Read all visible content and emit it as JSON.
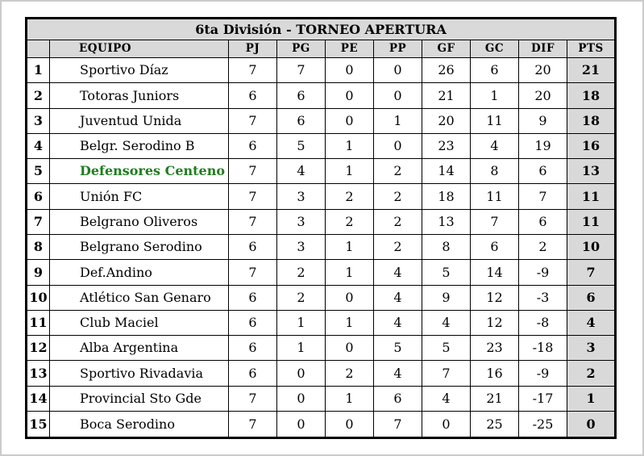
{
  "title": "6ta División - TORNEO APERTURA",
  "table": {
    "headers": {
      "rank": "",
      "equipo": "EQUIPO",
      "pj": "PJ",
      "pg": "PG",
      "pe": "PE",
      "pp": "PP",
      "gf": "GF",
      "gc": "GC",
      "dif": "DIF",
      "pts": "PTS"
    }
  },
  "rows": [
    {
      "rank": 1,
      "team": "Sportivo Díaz",
      "pj": 7,
      "pg": 7,
      "pe": 0,
      "pp": 0,
      "gf": 26,
      "gc": 6,
      "dif": 20,
      "pts": 21,
      "highlighted": false
    },
    {
      "rank": 2,
      "team": "Totoras Juniors",
      "pj": 6,
      "pg": 6,
      "pe": 0,
      "pp": 0,
      "gf": 21,
      "gc": 1,
      "dif": 20,
      "pts": 18,
      "highlighted": false
    },
    {
      "rank": 3,
      "team": "Juventud Unida",
      "pj": 7,
      "pg": 6,
      "pe": 0,
      "pp": 1,
      "gf": 20,
      "gc": 11,
      "dif": 9,
      "pts": 18,
      "highlighted": false
    },
    {
      "rank": 4,
      "team": "Belgr. Serodino B",
      "pj": 6,
      "pg": 5,
      "pe": 1,
      "pp": 0,
      "gf": 23,
      "gc": 4,
      "dif": 19,
      "pts": 16,
      "highlighted": false
    },
    {
      "rank": 5,
      "team": "Defensores Centeno",
      "pj": 7,
      "pg": 4,
      "pe": 1,
      "pp": 2,
      "gf": 14,
      "gc": 8,
      "dif": 6,
      "pts": 13,
      "highlighted": true
    },
    {
      "rank": 6,
      "team": "Unión FC",
      "pj": 7,
      "pg": 3,
      "pe": 2,
      "pp": 2,
      "gf": 18,
      "gc": 11,
      "dif": 7,
      "pts": 11,
      "highlighted": false
    },
    {
      "rank": 7,
      "team": "Belgrano Oliveros",
      "pj": 7,
      "pg": 3,
      "pe": 2,
      "pp": 2,
      "gf": 13,
      "gc": 7,
      "dif": 6,
      "pts": 11,
      "highlighted": false
    },
    {
      "rank": 8,
      "team": "Belgrano Serodino",
      "pj": 6,
      "pg": 3,
      "pe": 1,
      "pp": 2,
      "gf": 8,
      "gc": 6,
      "dif": 2,
      "pts": 10,
      "highlighted": false
    },
    {
      "rank": 9,
      "team": "Def.Andino",
      "pj": 7,
      "pg": 2,
      "pe": 1,
      "pp": 4,
      "gf": 5,
      "gc": 14,
      "dif": -9,
      "pts": 7,
      "highlighted": false
    },
    {
      "rank": 10,
      "team": "Atlético San Genaro",
      "pj": 6,
      "pg": 2,
      "pe": 0,
      "pp": 4,
      "gf": 9,
      "gc": 12,
      "dif": -3,
      "pts": 6,
      "highlighted": false
    },
    {
      "rank": 11,
      "team": "Club Maciel",
      "pj": 6,
      "pg": 1,
      "pe": 1,
      "pp": 4,
      "gf": 4,
      "gc": 12,
      "dif": -8,
      "pts": 4,
      "highlighted": false
    },
    {
      "rank": 12,
      "team": "Alba Argentina",
      "pj": 6,
      "pg": 1,
      "pe": 0,
      "pp": 5,
      "gf": 5,
      "gc": 23,
      "dif": -18,
      "pts": 3,
      "highlighted": false
    },
    {
      "rank": 13,
      "team": "Sportivo Rivadavia",
      "pj": 6,
      "pg": 0,
      "pe": 2,
      "pp": 4,
      "gf": 7,
      "gc": 16,
      "dif": -9,
      "pts": 2,
      "highlighted": false
    },
    {
      "rank": 14,
      "team": "Provincial Sto Gde",
      "pj": 7,
      "pg": 0,
      "pe": 1,
      "pp": 6,
      "gf": 4,
      "gc": 21,
      "dif": -17,
      "pts": 1,
      "highlighted": false
    },
    {
      "rank": 15,
      "team": "Boca Serodino",
      "pj": 7,
      "pg": 0,
      "pe": 0,
      "pp": 7,
      "gf": 0,
      "gc": 25,
      "dif": -25,
      "pts": 0,
      "highlighted": false
    }
  ],
  "colors": {
    "header_bg": "#d9d9d9",
    "pts_column_bg": "#d9d9d9",
    "highlight_team_color": "#1f7d1f",
    "grid_border": "#000000",
    "page_frame": "#cbcbcb"
  },
  "chart_data": {
    "type": "table",
    "title": "6ta División - TORNEO APERTURA",
    "columns": [
      "",
      "EQUIPO",
      "PJ",
      "PG",
      "PE",
      "PP",
      "GF",
      "GC",
      "DIF",
      "PTS"
    ],
    "rows": [
      [
        1,
        "Sportivo Díaz",
        7,
        7,
        0,
        0,
        26,
        6,
        20,
        21
      ],
      [
        2,
        "Totoras Juniors",
        6,
        6,
        0,
        0,
        21,
        1,
        20,
        18
      ],
      [
        3,
        "Juventud Unida",
        7,
        6,
        0,
        1,
        20,
        11,
        9,
        18
      ],
      [
        4,
        "Belgr. Serodino B",
        6,
        5,
        1,
        0,
        23,
        4,
        19,
        16
      ],
      [
        5,
        "Defensores Centeno",
        7,
        4,
        1,
        2,
        14,
        8,
        6,
        13
      ],
      [
        6,
        "Unión FC",
        7,
        3,
        2,
        2,
        18,
        11,
        7,
        11
      ],
      [
        7,
        "Belgrano Oliveros",
        7,
        3,
        2,
        2,
        13,
        7,
        6,
        11
      ],
      [
        8,
        "Belgrano Serodino",
        6,
        3,
        1,
        2,
        8,
        6,
        2,
        10
      ],
      [
        9,
        "Def.Andino",
        7,
        2,
        1,
        4,
        5,
        14,
        -9,
        7
      ],
      [
        10,
        "Atlético San Genaro",
        6,
        2,
        0,
        4,
        9,
        12,
        -3,
        6
      ],
      [
        11,
        "Club Maciel",
        6,
        1,
        1,
        4,
        4,
        12,
        -8,
        4
      ],
      [
        12,
        "Alba Argentina",
        6,
        1,
        0,
        5,
        5,
        23,
        -18,
        3
      ],
      [
        13,
        "Sportivo Rivadavia",
        6,
        0,
        2,
        4,
        7,
        16,
        -9,
        2
      ],
      [
        14,
        "Provincial Sto Gde",
        7,
        0,
        1,
        6,
        4,
        21,
        -17,
        1
      ],
      [
        15,
        "Boca Serodino",
        7,
        0,
        0,
        7,
        0,
        25,
        -25,
        0
      ]
    ],
    "notes": "Standings table; highlighted row: Defensores Centeno (green, position 5); PTS column and headers shaded gray"
  }
}
